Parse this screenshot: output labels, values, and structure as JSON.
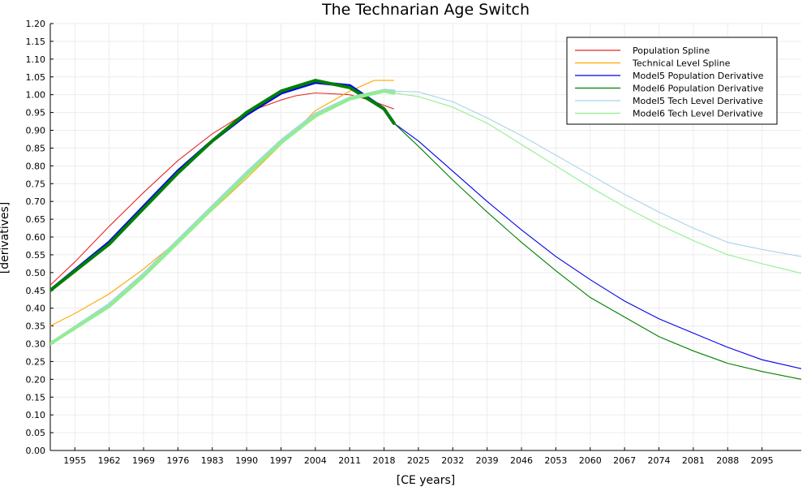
{
  "chart_data": {
    "type": "line",
    "title": "The Technarian Age Switch",
    "xlabel": "[CE years]",
    "ylabel": "[derivatives]",
    "xlim": [
      1950,
      2103
    ],
    "ylim": [
      0,
      1.2
    ],
    "x_ticks": [
      1955,
      1962,
      1969,
      1976,
      1983,
      1990,
      1997,
      2004,
      2011,
      2018,
      2025,
      2032,
      2039,
      2046,
      2053,
      2060,
      2067,
      2074,
      2081,
      2088,
      2095
    ],
    "y_ticks": [
      "0.00",
      "0.05",
      "0.10",
      "0.15",
      "0.20",
      "0.25",
      "0.30",
      "0.35",
      "0.40",
      "0.45",
      "0.50",
      "0.55",
      "0.60",
      "0.65",
      "0.70",
      "0.75",
      "0.80",
      "0.85",
      "0.90",
      "0.95",
      "1.00",
      "1.05",
      "1.10",
      "1.15",
      "1.20"
    ],
    "grid": true,
    "legend_position": "top-right",
    "series": [
      {
        "name": "Population Spline",
        "color": "#e8292a",
        "width": 1,
        "x": [
          1950,
          1955,
          1962,
          1969,
          1976,
          1983,
          1990,
          1997,
          2000,
          2004,
          2011,
          2015,
          2020
        ],
        "y": [
          0.465,
          0.53,
          0.63,
          0.725,
          0.815,
          0.89,
          0.95,
          0.985,
          0.997,
          1.005,
          1.0,
          0.985,
          0.96
        ]
      },
      {
        "name": "Technical Level Spline",
        "color": "#ffa500",
        "width": 1,
        "x": [
          1950,
          1955,
          1962,
          1969,
          1976,
          1983,
          1990,
          1997,
          2004,
          2011,
          2016,
          2020
        ],
        "y": [
          0.35,
          0.385,
          0.44,
          0.51,
          0.59,
          0.675,
          0.765,
          0.86,
          0.955,
          1.01,
          1.04,
          1.04
        ]
      },
      {
        "name": "Model5 Population Derivative",
        "color": "#0000ee",
        "width": 1,
        "x": [
          1950,
          1962,
          1969,
          1976,
          1983,
          1990,
          1997,
          2004,
          2011,
          2018,
          2020,
          2025,
          2032,
          2039,
          2046,
          2053,
          2060,
          2067,
          2074,
          2081,
          2088,
          2095,
          2103
        ],
        "y": [
          0.45,
          0.585,
          0.685,
          0.785,
          0.87,
          0.945,
          1.005,
          1.035,
          1.025,
          0.96,
          0.92,
          0.87,
          0.785,
          0.7,
          0.62,
          0.545,
          0.48,
          0.42,
          0.37,
          0.33,
          0.29,
          0.255,
          0.23
        ]
      },
      {
        "name": "Model6 Population Derivative",
        "color": "#008000",
        "width": 1,
        "x": [
          1950,
          1962,
          1969,
          1976,
          1983,
          1990,
          1997,
          2004,
          2011,
          2018,
          2020,
          2025,
          2032,
          2039,
          2046,
          2053,
          2060,
          2067,
          2074,
          2081,
          2088,
          2095,
          2103
        ],
        "y": [
          0.45,
          0.58,
          0.68,
          0.78,
          0.87,
          0.95,
          1.01,
          1.04,
          1.02,
          0.96,
          0.92,
          0.855,
          0.76,
          0.67,
          0.585,
          0.505,
          0.43,
          0.375,
          0.32,
          0.28,
          0.245,
          0.222,
          0.2
        ]
      },
      {
        "name": "Model5 Tech Level Derivative",
        "color": "#a8d4e6",
        "width": 1,
        "x": [
          1950,
          1962,
          1969,
          1976,
          1983,
          1990,
          1997,
          2004,
          2011,
          2018,
          2020,
          2025,
          2032,
          2039,
          2046,
          2053,
          2060,
          2067,
          2074,
          2081,
          2088,
          2095,
          2103
        ],
        "y": [
          0.3,
          0.41,
          0.495,
          0.59,
          0.685,
          0.78,
          0.87,
          0.945,
          0.99,
          1.012,
          1.01,
          1.008,
          0.98,
          0.935,
          0.885,
          0.83,
          0.775,
          0.72,
          0.67,
          0.625,
          0.585,
          0.565,
          0.545
        ]
      },
      {
        "name": "Model6 Tech Level Derivative",
        "color": "#90ee90",
        "width": 1,
        "x": [
          1950,
          1962,
          1969,
          1976,
          1983,
          1990,
          1997,
          2004,
          2011,
          2018,
          2020,
          2025,
          2032,
          2039,
          2046,
          2053,
          2060,
          2067,
          2074,
          2081,
          2088,
          2095,
          2103
        ],
        "y": [
          0.3,
          0.405,
          0.49,
          0.585,
          0.68,
          0.775,
          0.865,
          0.94,
          0.988,
          1.01,
          1.005,
          0.995,
          0.965,
          0.92,
          0.86,
          0.8,
          0.74,
          0.685,
          0.635,
          0.59,
          0.55,
          0.525,
          0.498
        ]
      }
    ]
  }
}
